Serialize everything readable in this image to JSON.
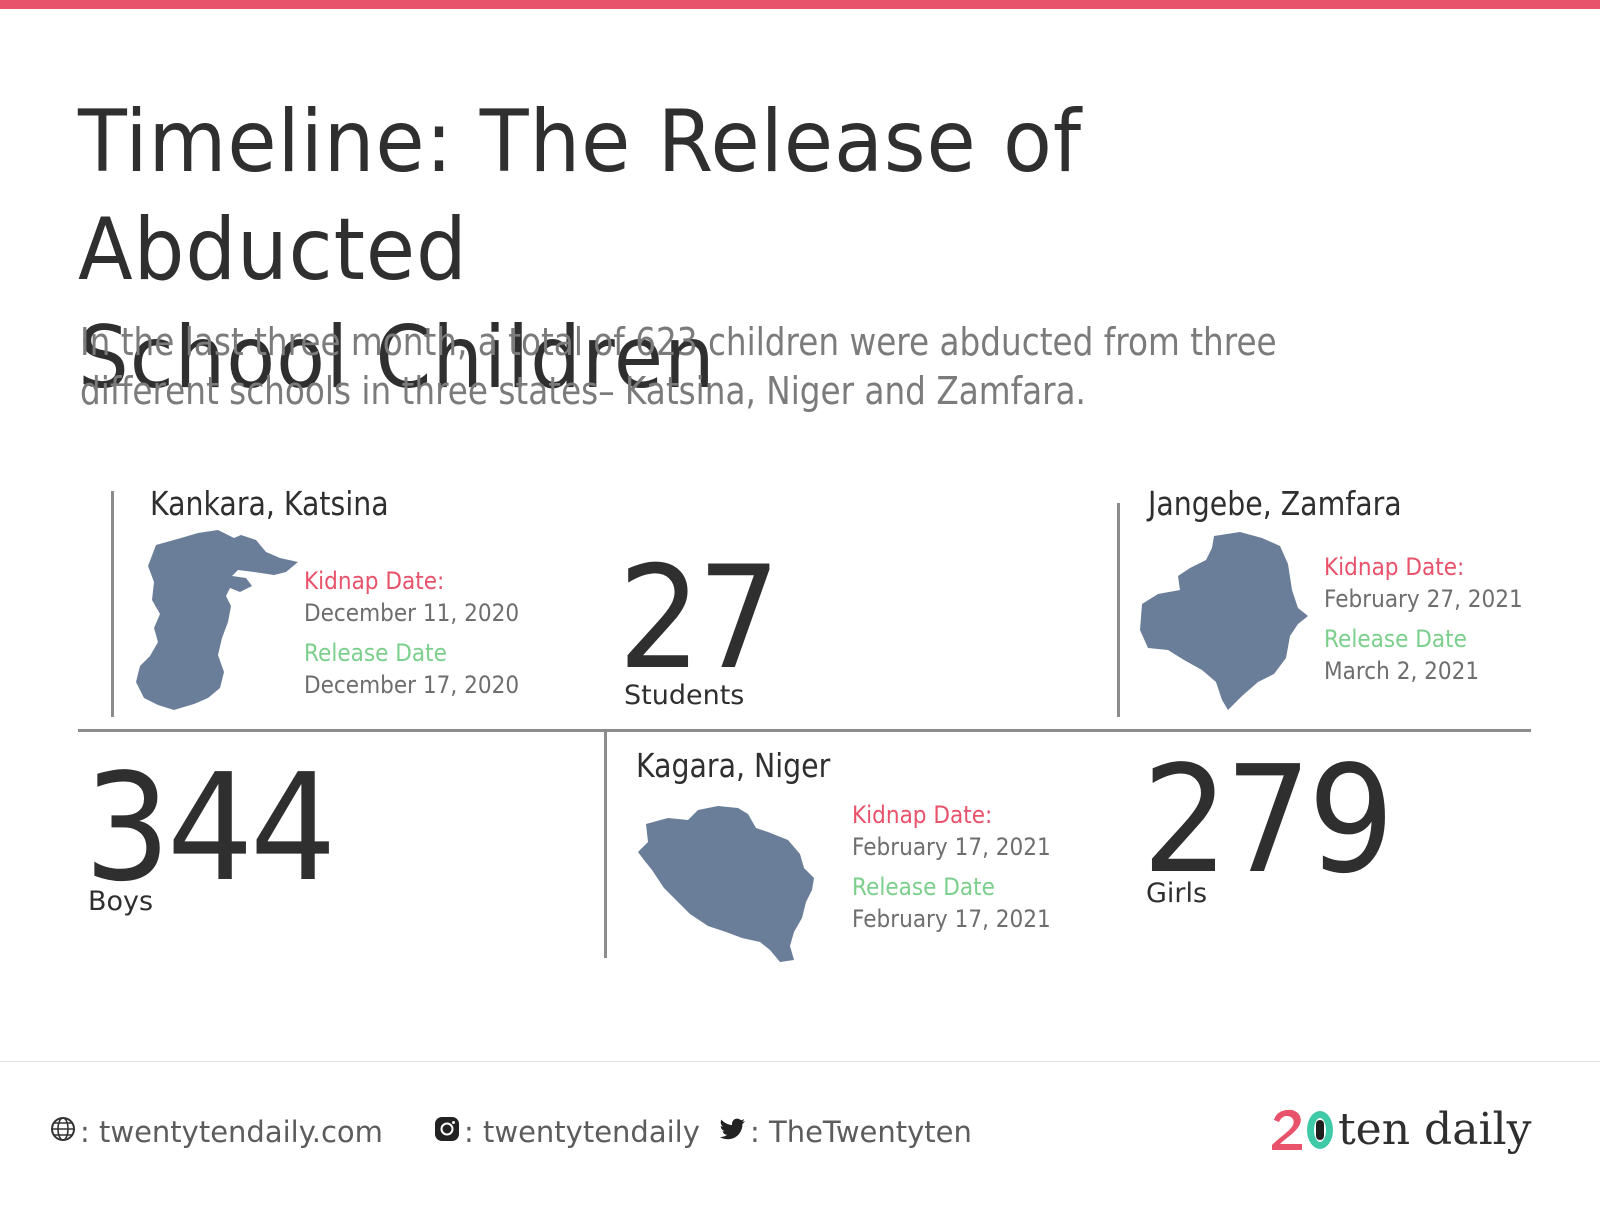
{
  "header": {
    "title_line1": "Timeline: The Release of Abducted",
    "title_line2": "School Children",
    "subtitle_line1": "In the last three month, a total of 623 children were abducted from three",
    "subtitle_line2": "different schools in three states– Katsina, Niger and Zamfara."
  },
  "colors": {
    "accent": "#e8526a",
    "release": "#7ccf8c",
    "map_fill": "#6a7e99",
    "text": "#2f2f2f"
  },
  "schools": {
    "katsina": {
      "location": "Kankara, Katsina",
      "kidnap_label": "Kidnap Date:",
      "kidnap_date": "December 11, 2020",
      "release_label": "Release Date",
      "release_date": "December 17, 2020"
    },
    "zamfara": {
      "location": "Jangebe, Zamfara",
      "kidnap_label": "Kidnap Date:",
      "kidnap_date": "February 27, 2021",
      "release_label": "Release Date",
      "release_date": "March 2, 2021"
    },
    "niger": {
      "location": "Kagara, Niger",
      "kidnap_label": "Kidnap Date:",
      "kidnap_date": "February 17, 2021",
      "release_label": "Release Date",
      "release_date": "February 17, 2021"
    }
  },
  "stats": {
    "students_value": "27",
    "students_label": "Students",
    "boys_value": "344",
    "boys_label": "Boys",
    "girls_value": "279",
    "girls_label": "Girls"
  },
  "footer": {
    "website": ": twentytendaily.com",
    "instagram": ": twentytendaily",
    "twitter": ": TheTwentyten",
    "brand_text": "ten daily",
    "brand_mark": "20"
  },
  "icons": {
    "website": "globe-icon",
    "instagram": "instagram-icon",
    "twitter": "twitter-icon"
  }
}
